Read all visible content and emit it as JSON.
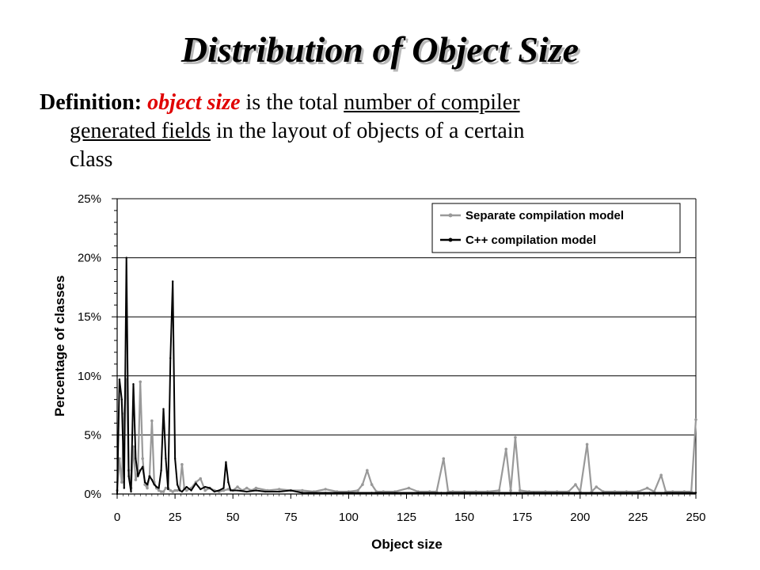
{
  "slide": {
    "title": "Distribution of Object Size",
    "definition": {
      "label": "Definition:",
      "term": "object size",
      "text_a": " is the total ",
      "underlined_a": "number of compiler",
      "underlined_b": "generated fields",
      "text_b": " in the layout of objects of a certain",
      "text_c": "class"
    }
  },
  "chart_data": {
    "type": "line",
    "title": "",
    "xlabel": "Object size",
    "ylabel": "Percentage of classes",
    "xlim": [
      0,
      250
    ],
    "ylim": [
      0,
      25
    ],
    "x_ticks": [
      "0",
      "25",
      "50",
      "75",
      "100",
      "125",
      "150",
      "175",
      "200",
      "225",
      "250"
    ],
    "y_ticks": [
      "0%",
      "5%",
      "10%",
      "15%",
      "20%",
      "25%"
    ],
    "grid": "horizontal",
    "legend_position": "top-right",
    "series": [
      {
        "name": "Separate compilation model",
        "color": "#999999",
        "points": [
          [
            0,
            0.3
          ],
          [
            1,
            3
          ],
          [
            2,
            1
          ],
          [
            3,
            6.8
          ],
          [
            4,
            9.7
          ],
          [
            5,
            2
          ],
          [
            6,
            0.5
          ],
          [
            7,
            4
          ],
          [
            8,
            1.2
          ],
          [
            9,
            2
          ],
          [
            10,
            9.5
          ],
          [
            11,
            3
          ],
          [
            12,
            0.8
          ],
          [
            13,
            0.5
          ],
          [
            14,
            1.5
          ],
          [
            15,
            6.2
          ],
          [
            16,
            1
          ],
          [
            17,
            0.5
          ],
          [
            18,
            0.3
          ],
          [
            19,
            0.2
          ],
          [
            20,
            0.2
          ],
          [
            21,
            0.5
          ],
          [
            22,
            0.5
          ],
          [
            23,
            0.3
          ],
          [
            24,
            0.2
          ],
          [
            25,
            0.3
          ],
          [
            26,
            0.3
          ],
          [
            27,
            0.4
          ],
          [
            28,
            2.5
          ],
          [
            29,
            0.5
          ],
          [
            30,
            0.3
          ],
          [
            32,
            0.5
          ],
          [
            34,
            1
          ],
          [
            36,
            1.3
          ],
          [
            38,
            0.3
          ],
          [
            40,
            0.5
          ],
          [
            42,
            0.3
          ],
          [
            44,
            0.2
          ],
          [
            46,
            0.3
          ],
          [
            48,
            0.4
          ],
          [
            50,
            0.3
          ],
          [
            52,
            0.6
          ],
          [
            54,
            0.3
          ],
          [
            56,
            0.5
          ],
          [
            58,
            0.3
          ],
          [
            60,
            0.5
          ],
          [
            65,
            0.3
          ],
          [
            70,
            0.4
          ],
          [
            75,
            0.3
          ],
          [
            80,
            0.3
          ],
          [
            85,
            0.2
          ],
          [
            90,
            0.4
          ],
          [
            95,
            0.2
          ],
          [
            100,
            0.2
          ],
          [
            104,
            0.3
          ],
          [
            106,
            0.8
          ],
          [
            108,
            2
          ],
          [
            110,
            0.8
          ],
          [
            112,
            0.2
          ],
          [
            115,
            0.2
          ],
          [
            120,
            0.2
          ],
          [
            126,
            0.5
          ],
          [
            130,
            0.2
          ],
          [
            135,
            0.2
          ],
          [
            138,
            0.2
          ],
          [
            141,
            3
          ],
          [
            143,
            0.2
          ],
          [
            145,
            0.2
          ],
          [
            150,
            0.2
          ],
          [
            155,
            0.2
          ],
          [
            160,
            0.2
          ],
          [
            165,
            0.3
          ],
          [
            168,
            3.8
          ],
          [
            170,
            0.3
          ],
          [
            172,
            4.8
          ],
          [
            174,
            0.3
          ],
          [
            178,
            0.2
          ],
          [
            185,
            0.2
          ],
          [
            190,
            0.2
          ],
          [
            195,
            0.2
          ],
          [
            198,
            0.8
          ],
          [
            200,
            0.2
          ],
          [
            203,
            4.2
          ],
          [
            205,
            0.2
          ],
          [
            207,
            0.6
          ],
          [
            210,
            0.2
          ],
          [
            215,
            0.2
          ],
          [
            220,
            0.2
          ],
          [
            225,
            0.2
          ],
          [
            229,
            0.5
          ],
          [
            232,
            0.2
          ],
          [
            235,
            1.6
          ],
          [
            237,
            0.2
          ],
          [
            240,
            0.2
          ],
          [
            245,
            0.2
          ],
          [
            248,
            0.2
          ],
          [
            250,
            6.3
          ]
        ]
      },
      {
        "name": "C++ compilation model",
        "color": "#000000",
        "points": [
          [
            0,
            0
          ],
          [
            1,
            9.7
          ],
          [
            2,
            8
          ],
          [
            3,
            0.5
          ],
          [
            4,
            20
          ],
          [
            5,
            1.5
          ],
          [
            6,
            0.2
          ],
          [
            7,
            9.3
          ],
          [
            8,
            3
          ],
          [
            9,
            1.5
          ],
          [
            10,
            2
          ],
          [
            11,
            2.3
          ],
          [
            12,
            1
          ],
          [
            13,
            0.8
          ],
          [
            14,
            1.5
          ],
          [
            15,
            1.2
          ],
          [
            16,
            0.8
          ],
          [
            17,
            0.6
          ],
          [
            18,
            0.5
          ],
          [
            19,
            2
          ],
          [
            20,
            7.2
          ],
          [
            21,
            3
          ],
          [
            22,
            0.4
          ],
          [
            23,
            11.5
          ],
          [
            24,
            18
          ],
          [
            25,
            3
          ],
          [
            26,
            0.8
          ],
          [
            27,
            0.3
          ],
          [
            28,
            0.2
          ],
          [
            30,
            0.6
          ],
          [
            32,
            0.3
          ],
          [
            34,
            0.9
          ],
          [
            36,
            0.4
          ],
          [
            38,
            0.6
          ],
          [
            40,
            0.5
          ],
          [
            42,
            0.2
          ],
          [
            44,
            0.3
          ],
          [
            46,
            0.5
          ],
          [
            47,
            2.7
          ],
          [
            48,
            1
          ],
          [
            49,
            0.3
          ],
          [
            52,
            0.3
          ],
          [
            56,
            0.2
          ],
          [
            60,
            0.3
          ],
          [
            64,
            0.2
          ],
          [
            70,
            0.2
          ],
          [
            75,
            0.3
          ],
          [
            80,
            0.1
          ],
          [
            90,
            0.1
          ],
          [
            100,
            0.1
          ],
          [
            110,
            0.1
          ],
          [
            120,
            0.1
          ],
          [
            130,
            0.1
          ],
          [
            140,
            0.1
          ],
          [
            150,
            0.1
          ],
          [
            160,
            0.1
          ],
          [
            170,
            0.1
          ],
          [
            180,
            0.1
          ],
          [
            190,
            0.1
          ],
          [
            200,
            0.1
          ],
          [
            210,
            0.1
          ],
          [
            220,
            0.1
          ],
          [
            230,
            0.1
          ],
          [
            240,
            0.1
          ],
          [
            250,
            0.1
          ]
        ]
      }
    ]
  }
}
